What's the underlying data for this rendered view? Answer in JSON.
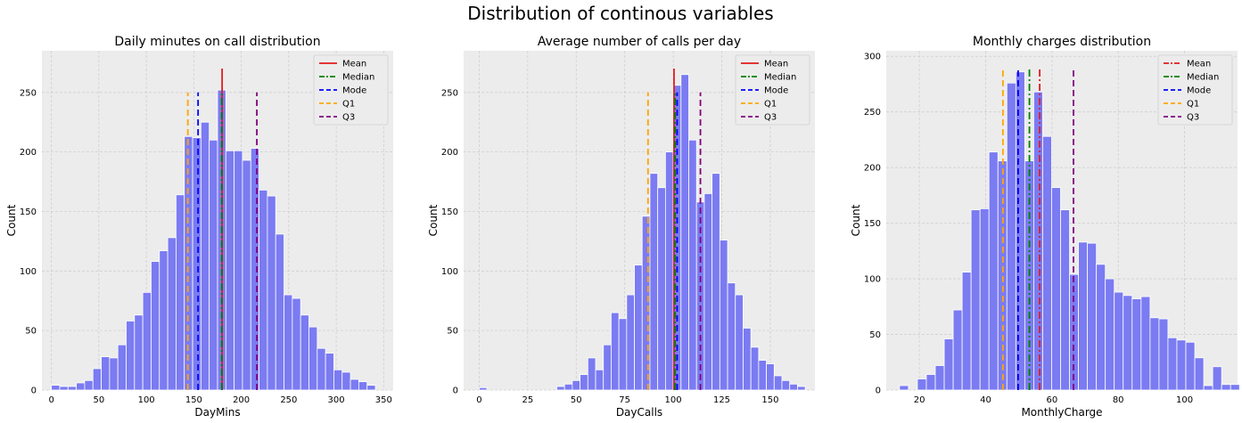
{
  "suptitle": "Distribution of continous variables",
  "legend_labels": [
    "Mean",
    "Median",
    "Mode",
    "Q1",
    "Q3"
  ],
  "colors": {
    "bar": "#7b7bf2",
    "bar_edge": "#ffffff",
    "bg": "#ececec",
    "grid": "#cfcfcf",
    "mean": "#e41a1c",
    "median": "#008000",
    "mode": "#0000ff",
    "q1": "#ffa500",
    "q3": "#800080"
  },
  "chart_data": [
    {
      "type": "bar",
      "title": "Daily minutes on call distribution",
      "xlabel": "DayMins",
      "ylabel": "Count",
      "xlim": [
        -10,
        360
      ],
      "ylim": [
        0,
        285
      ],
      "xticks": [
        0,
        50,
        100,
        150,
        200,
        250,
        300,
        350
      ],
      "yticks": [
        0,
        50,
        100,
        150,
        200,
        250
      ],
      "grid": true,
      "legend_position": "top-right",
      "bin_start": 0,
      "bin_width": 8.75,
      "values": [
        4,
        3,
        3,
        6,
        8,
        18,
        28,
        27,
        38,
        58,
        63,
        82,
        108,
        117,
        128,
        164,
        213,
        212,
        225,
        210,
        252,
        201,
        201,
        193,
        203,
        168,
        163,
        131,
        80,
        77,
        63,
        53,
        35,
        31,
        17,
        15,
        9,
        7,
        4
      ],
      "lines": [
        {
          "name": "Mean",
          "x": 179.8,
          "top": 270,
          "style": "solid"
        },
        {
          "name": "Median",
          "x": 179.4,
          "top": 250,
          "style": "dashdot"
        },
        {
          "name": "Mode",
          "x": 154.5,
          "top": 250,
          "style": "dashed"
        },
        {
          "name": "Q1",
          "x": 143.7,
          "top": 250,
          "style": "dashed"
        },
        {
          "name": "Q3",
          "x": 216.4,
          "top": 250,
          "style": "dashed"
        }
      ]
    },
    {
      "type": "bar",
      "title": "Average number of calls per day",
      "xlabel": "DayCalls",
      "ylabel": "Count",
      "xlim": [
        -8,
        173
      ],
      "ylim": [
        0,
        285
      ],
      "xticks": [
        0,
        25,
        50,
        75,
        100,
        125,
        150
      ],
      "yticks": [
        0,
        50,
        100,
        150,
        200,
        250
      ],
      "grid": true,
      "legend_position": "top-right",
      "bin_start": 0,
      "bin_width": 4.0,
      "values": [
        2,
        0,
        0,
        0,
        0,
        0,
        0,
        0,
        0,
        0,
        3,
        5,
        8,
        13,
        27,
        17,
        38,
        65,
        60,
        80,
        105,
        146,
        182,
        170,
        200,
        256,
        265,
        210,
        158,
        165,
        182,
        126,
        90,
        80,
        52,
        36,
        25,
        22,
        12,
        8,
        5,
        3
      ],
      "lines": [
        {
          "name": "Mean",
          "x": 100.4,
          "top": 270,
          "style": "solid"
        },
        {
          "name": "Median",
          "x": 101.0,
          "top": 250,
          "style": "dashdot"
        },
        {
          "name": "Mode",
          "x": 102.0,
          "top": 250,
          "style": "dashed"
        },
        {
          "name": "Q1",
          "x": 87.0,
          "top": 250,
          "style": "dashed"
        },
        {
          "name": "Q3",
          "x": 114.0,
          "top": 250,
          "style": "dashed"
        }
      ]
    },
    {
      "type": "bar",
      "title": "Monthly charges distribution",
      "xlabel": "MonthlyCharge",
      "ylabel": "Count",
      "xlim": [
        10,
        116
      ],
      "ylim": [
        0,
        305
      ],
      "xticks": [
        20,
        40,
        60,
        80,
        100
      ],
      "yticks": [
        0,
        50,
        100,
        150,
        200,
        250,
        300
      ],
      "grid": true,
      "legend_position": "top-right",
      "bin_start": 14,
      "bin_width": 2.7,
      "values": [
        4,
        0,
        10,
        14,
        22,
        46,
        72,
        106,
        162,
        163,
        214,
        206,
        276,
        286,
        206,
        268,
        228,
        182,
        162,
        104,
        133,
        132,
        113,
        100,
        88,
        85,
        82,
        84,
        65,
        64,
        47,
        45,
        43,
        29,
        4,
        21,
        5,
        5
      ],
      "lines": [
        {
          "name": "Mean",
          "x": 56.3,
          "top": 290,
          "style": "dashdot"
        },
        {
          "name": "Median",
          "x": 53.2,
          "top": 290,
          "style": "dashdot"
        },
        {
          "name": "Mode",
          "x": 49.8,
          "top": 290,
          "style": "dashed"
        },
        {
          "name": "Q1",
          "x": 45.2,
          "top": 290,
          "style": "dashed"
        },
        {
          "name": "Q3",
          "x": 66.5,
          "top": 290,
          "style": "dashed"
        }
      ]
    }
  ]
}
